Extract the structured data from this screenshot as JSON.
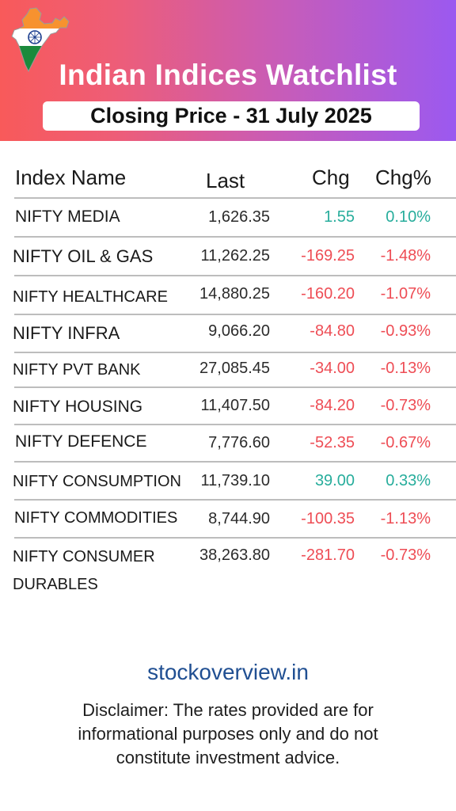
{
  "header": {
    "title": "Indian Indices Watchlist",
    "subtitle": "Closing Price - 31 July 2025",
    "gradient_colors": [
      "#f85a5a",
      "#9b59f0"
    ]
  },
  "columns": {
    "name": "Index Name",
    "last": "Last",
    "chg": "Chg",
    "pct": "Chg%"
  },
  "rows": [
    {
      "name": "NIFTY MEDIA",
      "last": "1,626.35",
      "chg": "1.55",
      "pct": "0.10%",
      "direction": "up"
    },
    {
      "name": "NIFTY OIL & GAS",
      "last": "11,262.25",
      "chg": "-169.25",
      "pct": "-1.48%",
      "direction": "down"
    },
    {
      "name": "NIFTY HEALTHCARE",
      "last": "14,880.25",
      "chg": "-160.20",
      "pct": "-1.07%",
      "direction": "down"
    },
    {
      "name": "NIFTY INFRA",
      "last": "9,066.20",
      "chg": "-84.80",
      "pct": "-0.93%",
      "direction": "down"
    },
    {
      "name": "NIFTY PVT BANK",
      "last": "27,085.45",
      "chg": "-34.00",
      "pct": "-0.13%",
      "direction": "down"
    },
    {
      "name": "NIFTY HOUSING",
      "last": "11,407.50",
      "chg": "-84.20",
      "pct": "-0.73%",
      "direction": "down"
    },
    {
      "name": "NIFTY DEFENCE",
      "last": "7,776.60",
      "chg": "-52.35",
      "pct": "-0.67%",
      "direction": "down"
    },
    {
      "name": "NIFTY CONSUMPTION",
      "last": "11,739.10",
      "chg": "39.00",
      "pct": "0.33%",
      "direction": "up"
    },
    {
      "name": "NIFTY COMMODITIES",
      "last": "8,744.90",
      "chg": "-100.35",
      "pct": "-1.13%",
      "direction": "down"
    },
    {
      "name_line1": "NIFTY CONSUMER",
      "name_line2": "DURABLES",
      "last": "38,263.80",
      "chg": "-281.70",
      "pct": "-0.73%",
      "direction": "down"
    }
  ],
  "colors": {
    "positive": "#27ad9c",
    "negative": "#ee4d55"
  },
  "footer": {
    "website": "stockoverview.in",
    "disclaimer": "Disclaimer: The rates provided are for informational purposes only and do not constitute investment advice."
  },
  "icons": {
    "header_logo": "india-flag-map-icon"
  }
}
